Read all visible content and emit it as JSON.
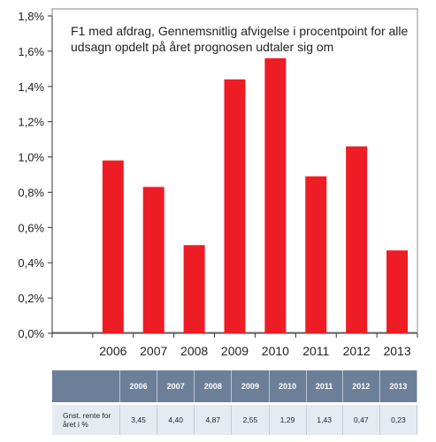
{
  "chart_data": {
    "type": "bar",
    "title": "F1 med afdrag, Gennemsnitlig afvigelse i procentpoint for alle udsagn opdelt på året prognosen udtaler sig om",
    "categories": [
      "2006",
      "2007",
      "2008",
      "2009",
      "2010",
      "2011",
      "2012",
      "2013"
    ],
    "values": [
      0.98,
      0.83,
      0.5,
      1.44,
      1.56,
      0.89,
      1.06,
      0.47
    ],
    "y_ticks": [
      "0,0%",
      "0,2%",
      "0,4%",
      "0,6%",
      "0,8%",
      "1,0%",
      "1,2%",
      "1,4%",
      "1,6%",
      "1,8%"
    ],
    "ylim": [
      0,
      1.8
    ],
    "bar_color": "#ee1c25",
    "grid": false,
    "legend": "none"
  },
  "table": {
    "headers": [
      "2006",
      "2007",
      "2008",
      "2009",
      "2010",
      "2011",
      "2012",
      "2013"
    ],
    "row_label": "Gnst. rente for året i %",
    "values": [
      "3,45",
      "4,40",
      "4,87",
      "2,55",
      "1,29",
      "1,43",
      "0,47",
      "0,23"
    ]
  }
}
